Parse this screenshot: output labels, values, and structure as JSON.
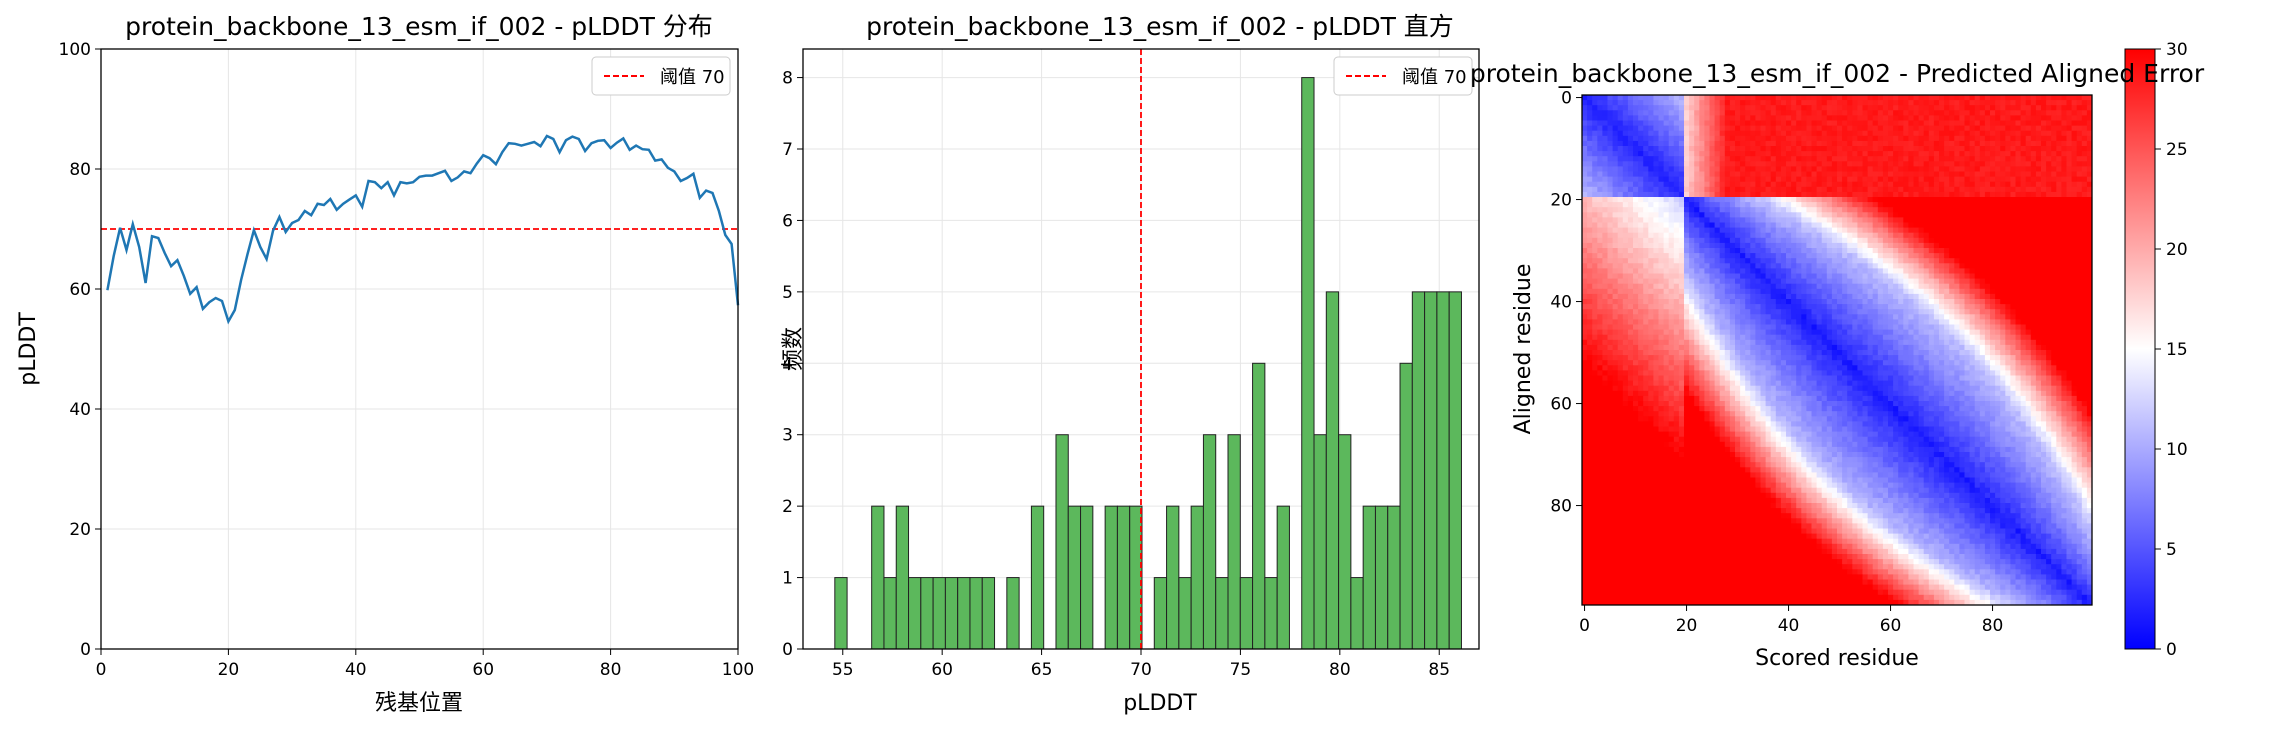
{
  "colors": {
    "line": "#1f77b4",
    "threshold": "#ff0000",
    "bar_fill": "#5cb85c",
    "bar_edge": "#222222",
    "grid": "#e6e6e6",
    "heatmap_low": "#0000ff",
    "heatmap_mid": "#ffffff",
    "heatmap_high": "#ff0000"
  },
  "chart_data": [
    {
      "type": "line",
      "title": "protein_backbone_13_esm_if_002 - pLDDT 分布",
      "xlabel": "残基位置",
      "ylabel": "pLDDT",
      "xlim": [
        0,
        100
      ],
      "ylim": [
        0,
        100
      ],
      "xticks": [
        "0",
        "20",
        "40",
        "60",
        "80",
        "100"
      ],
      "yticks": [
        "0",
        "20",
        "40",
        "60",
        "80",
        "100"
      ],
      "grid": true,
      "legend": {
        "position": "top-right",
        "entries": [
          "阈值 70"
        ]
      },
      "threshold": 70,
      "x": [
        1,
        2,
        3,
        4,
        5,
        6,
        7,
        8,
        9,
        10,
        11,
        12,
        13,
        14,
        15,
        16,
        17,
        18,
        19,
        20,
        21,
        22,
        23,
        24,
        25,
        26,
        27,
        28,
        29,
        30,
        31,
        32,
        33,
        34,
        35,
        36,
        37,
        38,
        39,
        40,
        41,
        42,
        43,
        44,
        45,
        46,
        47,
        48,
        49,
        50,
        51,
        52,
        53,
        54,
        55,
        56,
        57,
        58,
        59,
        60,
        61,
        62,
        63,
        64,
        65,
        66,
        67,
        68,
        69,
        70,
        71,
        72,
        73,
        74,
        75,
        76,
        77,
        78,
        79,
        80,
        81,
        82,
        83,
        84,
        85,
        86,
        87,
        88,
        89,
        90,
        91,
        92,
        93,
        94,
        95,
        96,
        97,
        98,
        99,
        100
      ],
      "values": [
        59.8,
        65.5,
        70.2,
        66.5,
        70.8,
        67.0,
        61.0,
        68.8,
        68.5,
        66.0,
        63.8,
        64.8,
        62.2,
        59.2,
        60.3,
        56.7,
        57.8,
        58.5,
        58.0,
        54.6,
        56.5,
        61.5,
        65.8,
        69.8,
        67.0,
        65.0,
        69.7,
        72.0,
        69.5,
        71.0,
        71.5,
        73.0,
        72.3,
        74.2,
        74.0,
        75.0,
        73.2,
        74.2,
        74.9,
        75.6,
        73.7,
        78.0,
        77.8,
        76.8,
        77.8,
        75.6,
        77.8,
        77.6,
        77.8,
        78.7,
        78.9,
        78.9,
        79.3,
        79.7,
        78.0,
        78.6,
        79.6,
        79.3,
        80.9,
        82.3,
        81.8,
        80.8,
        82.8,
        84.3,
        84.2,
        83.9,
        84.2,
        84.5,
        83.8,
        85.5,
        85.0,
        82.8,
        84.8,
        85.4,
        85.0,
        83.0,
        84.3,
        84.7,
        84.8,
        83.5,
        84.4,
        85.1,
        83.2,
        83.9,
        83.3,
        83.2,
        81.4,
        81.6,
        80.2,
        79.6,
        78.0,
        78.5,
        79.2,
        75.2,
        76.4,
        76.0,
        73.0,
        69.0,
        67.5,
        57.3
      ]
    },
    {
      "type": "bar",
      "title": "protein_backbone_13_esm_if_002 - pLDDT 直方",
      "xlabel": "pLDDT",
      "ylabel": "频数",
      "xlim": [
        53.0,
        87.0
      ],
      "ylim": [
        0,
        8.4
      ],
      "xticks": [
        "55",
        "60",
        "65",
        "70",
        "75",
        "80",
        "85"
      ],
      "yticks": [
        "0",
        "1",
        "2",
        "3",
        "4",
        "5",
        "6",
        "7",
        "8"
      ],
      "grid": true,
      "legend": {
        "position": "top-right",
        "entries": [
          "阈值 70"
        ]
      },
      "threshold": 70,
      "bin_start": 54.6,
      "bin_width": 0.618,
      "counts": [
        1,
        0,
        0,
        2,
        1,
        2,
        1,
        1,
        1,
        1,
        1,
        1,
        1,
        0,
        1,
        0,
        2,
        0,
        3,
        2,
        2,
        0,
        2,
        2,
        2,
        0,
        1,
        2,
        1,
        2,
        3,
        1,
        3,
        1,
        4,
        1,
        2,
        0,
        8,
        3,
        5,
        3,
        1,
        2,
        2,
        2,
        4,
        5,
        5,
        5,
        5
      ]
    },
    {
      "type": "heatmap",
      "title": "protein_backbone_13_esm_if_002 - Predicted Aligned Error",
      "xlabel": "Scored residue",
      "ylabel": "Aligned residue",
      "size": 100,
      "xticks": [
        "0",
        "20",
        "40",
        "60",
        "80"
      ],
      "yticks": [
        "0",
        "20",
        "40",
        "60",
        "80"
      ],
      "colorbar": {
        "min": 0,
        "max": 30,
        "ticks": [
          "0",
          "5",
          "10",
          "15",
          "20",
          "25",
          "30"
        ]
      }
    }
  ]
}
